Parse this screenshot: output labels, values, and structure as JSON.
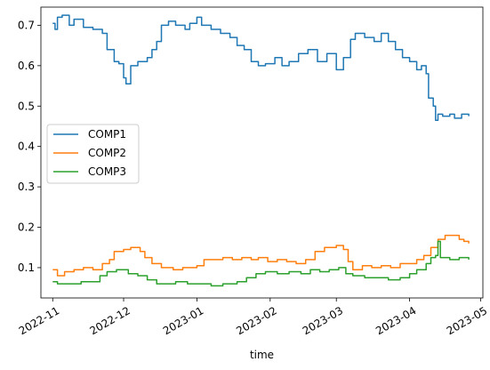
{
  "chart_data": {
    "type": "line",
    "xlabel": "time",
    "ylabel": "",
    "x_range": [
      "2022-10-27",
      "2023-05-02"
    ],
    "ylim": [
      0.025,
      0.745
    ],
    "x_ticks": [
      {
        "date": "2022-11-01",
        "label": "2022-11"
      },
      {
        "date": "2022-12-01",
        "label": "2022-12"
      },
      {
        "date": "2023-01-01",
        "label": "2023-01"
      },
      {
        "date": "2023-02-01",
        "label": "2023-02"
      },
      {
        "date": "2023-03-01",
        "label": "2023-03"
      },
      {
        "date": "2023-04-01",
        "label": "2023-04"
      },
      {
        "date": "2023-05-01",
        "label": "2023-05"
      }
    ],
    "y_ticks": [
      {
        "value": 0.1,
        "label": "0.1"
      },
      {
        "value": 0.2,
        "label": "0.2"
      },
      {
        "value": 0.3,
        "label": "0.3"
      },
      {
        "value": 0.4,
        "label": "0.4"
      },
      {
        "value": 0.5,
        "label": "0.5"
      },
      {
        "value": 0.6,
        "label": "0.6"
      },
      {
        "value": 0.7,
        "label": "0.7"
      }
    ],
    "grid": false,
    "legend": "center-left",
    "series": [
      {
        "name": "COMP1",
        "color": "#1f77b4",
        "points": [
          [
            "2022-11-01",
            0.705
          ],
          [
            "2022-11-02",
            0.69
          ],
          [
            "2022-11-03",
            0.72
          ],
          [
            "2022-11-05",
            0.725
          ],
          [
            "2022-11-08",
            0.7
          ],
          [
            "2022-11-10",
            0.715
          ],
          [
            "2022-11-14",
            0.695
          ],
          [
            "2022-11-18",
            0.69
          ],
          [
            "2022-11-22",
            0.68
          ],
          [
            "2022-11-24",
            0.64
          ],
          [
            "2022-11-27",
            0.61
          ],
          [
            "2022-11-29",
            0.605
          ],
          [
            "2022-12-01",
            0.57
          ],
          [
            "2022-12-02",
            0.555
          ],
          [
            "2022-12-04",
            0.6
          ],
          [
            "2022-12-07",
            0.61
          ],
          [
            "2022-12-11",
            0.62
          ],
          [
            "2022-12-13",
            0.64
          ],
          [
            "2022-12-15",
            0.66
          ],
          [
            "2022-12-17",
            0.7
          ],
          [
            "2022-12-20",
            0.71
          ],
          [
            "2022-12-23",
            0.7
          ],
          [
            "2022-12-27",
            0.69
          ],
          [
            "2022-12-29",
            0.705
          ],
          [
            "2023-01-01",
            0.72
          ],
          [
            "2023-01-03",
            0.7
          ],
          [
            "2023-01-07",
            0.69
          ],
          [
            "2023-01-11",
            0.68
          ],
          [
            "2023-01-15",
            0.67
          ],
          [
            "2023-01-18",
            0.65
          ],
          [
            "2023-01-21",
            0.64
          ],
          [
            "2023-01-24",
            0.61
          ],
          [
            "2023-01-27",
            0.6
          ],
          [
            "2023-01-30",
            0.605
          ],
          [
            "2023-02-03",
            0.62
          ],
          [
            "2023-02-06",
            0.6
          ],
          [
            "2023-02-09",
            0.61
          ],
          [
            "2023-02-13",
            0.63
          ],
          [
            "2023-02-17",
            0.64
          ],
          [
            "2023-02-21",
            0.61
          ],
          [
            "2023-02-25",
            0.63
          ],
          [
            "2023-03-01",
            0.59
          ],
          [
            "2023-03-04",
            0.62
          ],
          [
            "2023-03-07",
            0.665
          ],
          [
            "2023-03-09",
            0.68
          ],
          [
            "2023-03-13",
            0.67
          ],
          [
            "2023-03-17",
            0.66
          ],
          [
            "2023-03-20",
            0.68
          ],
          [
            "2023-03-23",
            0.66
          ],
          [
            "2023-03-26",
            0.64
          ],
          [
            "2023-03-29",
            0.62
          ],
          [
            "2023-04-01",
            0.61
          ],
          [
            "2023-04-04",
            0.59
          ],
          [
            "2023-04-06",
            0.6
          ],
          [
            "2023-04-08",
            0.58
          ],
          [
            "2023-04-09",
            0.52
          ],
          [
            "2023-04-11",
            0.5
          ],
          [
            "2023-04-12",
            0.465
          ],
          [
            "2023-04-13",
            0.48
          ],
          [
            "2023-04-15",
            0.475
          ],
          [
            "2023-04-18",
            0.48
          ],
          [
            "2023-04-20",
            0.47
          ],
          [
            "2023-04-23",
            0.48
          ],
          [
            "2023-04-26",
            0.475
          ]
        ]
      },
      {
        "name": "COMP2",
        "color": "#ff7f0e",
        "points": [
          [
            "2022-11-01",
            0.095
          ],
          [
            "2022-11-03",
            0.08
          ],
          [
            "2022-11-06",
            0.09
          ],
          [
            "2022-11-10",
            0.095
          ],
          [
            "2022-11-14",
            0.1
          ],
          [
            "2022-11-18",
            0.095
          ],
          [
            "2022-11-22",
            0.11
          ],
          [
            "2022-11-25",
            0.12
          ],
          [
            "2022-11-27",
            0.14
          ],
          [
            "2022-12-01",
            0.145
          ],
          [
            "2022-12-04",
            0.15
          ],
          [
            "2022-12-08",
            0.14
          ],
          [
            "2022-12-10",
            0.125
          ],
          [
            "2022-12-13",
            0.11
          ],
          [
            "2022-12-17",
            0.1
          ],
          [
            "2022-12-22",
            0.095
          ],
          [
            "2022-12-26",
            0.1
          ],
          [
            "2022-12-29",
            0.1
          ],
          [
            "2023-01-01",
            0.105
          ],
          [
            "2023-01-04",
            0.12
          ],
          [
            "2023-01-08",
            0.12
          ],
          [
            "2023-01-12",
            0.125
          ],
          [
            "2023-01-16",
            0.12
          ],
          [
            "2023-01-20",
            0.125
          ],
          [
            "2023-01-24",
            0.12
          ],
          [
            "2023-01-27",
            0.125
          ],
          [
            "2023-01-31",
            0.115
          ],
          [
            "2023-02-04",
            0.12
          ],
          [
            "2023-02-08",
            0.115
          ],
          [
            "2023-02-12",
            0.11
          ],
          [
            "2023-02-16",
            0.12
          ],
          [
            "2023-02-20",
            0.14
          ],
          [
            "2023-02-24",
            0.15
          ],
          [
            "2023-03-01",
            0.155
          ],
          [
            "2023-03-04",
            0.145
          ],
          [
            "2023-03-06",
            0.115
          ],
          [
            "2023-03-08",
            0.095
          ],
          [
            "2023-03-12",
            0.105
          ],
          [
            "2023-03-16",
            0.1
          ],
          [
            "2023-03-20",
            0.105
          ],
          [
            "2023-03-24",
            0.1
          ],
          [
            "2023-03-28",
            0.11
          ],
          [
            "2023-04-01",
            0.11
          ],
          [
            "2023-04-04",
            0.12
          ],
          [
            "2023-04-07",
            0.13
          ],
          [
            "2023-04-10",
            0.15
          ],
          [
            "2023-04-13",
            0.17
          ],
          [
            "2023-04-16",
            0.18
          ],
          [
            "2023-04-19",
            0.18
          ],
          [
            "2023-04-22",
            0.17
          ],
          [
            "2023-04-24",
            0.165
          ],
          [
            "2023-04-26",
            0.16
          ]
        ]
      },
      {
        "name": "COMP3",
        "color": "#2ca02c",
        "points": [
          [
            "2022-11-01",
            0.065
          ],
          [
            "2022-11-03",
            0.06
          ],
          [
            "2022-11-08",
            0.06
          ],
          [
            "2022-11-13",
            0.065
          ],
          [
            "2022-11-18",
            0.065
          ],
          [
            "2022-11-21",
            0.08
          ],
          [
            "2022-11-24",
            0.09
          ],
          [
            "2022-11-28",
            0.095
          ],
          [
            "2022-12-03",
            0.085
          ],
          [
            "2022-12-07",
            0.08
          ],
          [
            "2022-12-11",
            0.07
          ],
          [
            "2022-12-15",
            0.06
          ],
          [
            "2022-12-19",
            0.06
          ],
          [
            "2022-12-23",
            0.065
          ],
          [
            "2022-12-28",
            0.06
          ],
          [
            "2023-01-02",
            0.06
          ],
          [
            "2023-01-07",
            0.055
          ],
          [
            "2023-01-12",
            0.06
          ],
          [
            "2023-01-18",
            0.065
          ],
          [
            "2023-01-22",
            0.075
          ],
          [
            "2023-01-26",
            0.085
          ],
          [
            "2023-01-30",
            0.09
          ],
          [
            "2023-02-04",
            0.085
          ],
          [
            "2023-02-09",
            0.09
          ],
          [
            "2023-02-14",
            0.085
          ],
          [
            "2023-02-18",
            0.095
          ],
          [
            "2023-02-22",
            0.09
          ],
          [
            "2023-02-26",
            0.095
          ],
          [
            "2023-03-02",
            0.1
          ],
          [
            "2023-03-05",
            0.085
          ],
          [
            "2023-03-08",
            0.08
          ],
          [
            "2023-03-13",
            0.075
          ],
          [
            "2023-03-18",
            0.075
          ],
          [
            "2023-03-23",
            0.07
          ],
          [
            "2023-03-28",
            0.075
          ],
          [
            "2023-04-01",
            0.085
          ],
          [
            "2023-04-04",
            0.095
          ],
          [
            "2023-04-08",
            0.11
          ],
          [
            "2023-04-10",
            0.125
          ],
          [
            "2023-04-12",
            0.13
          ],
          [
            "2023-04-13",
            0.165
          ],
          [
            "2023-04-14",
            0.125
          ],
          [
            "2023-04-18",
            0.12
          ],
          [
            "2023-04-22",
            0.125
          ],
          [
            "2023-04-26",
            0.12
          ]
        ]
      }
    ]
  }
}
